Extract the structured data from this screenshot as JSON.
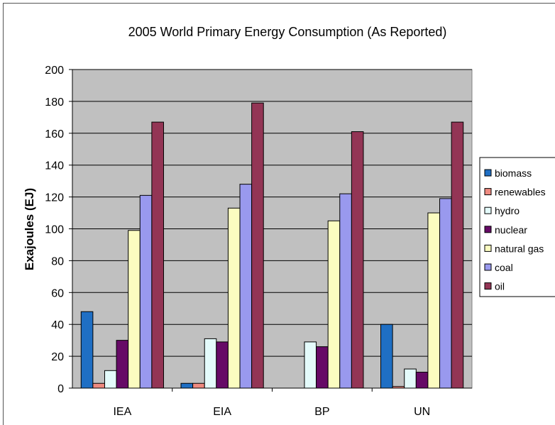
{
  "chart_data": {
    "type": "bar",
    "title": "2005 World Primary Energy Consumption (As Reported)",
    "xlabel": "",
    "ylabel": "Exajoules (EJ)",
    "categories": [
      "IEA",
      "EIA",
      "BP",
      "UN"
    ],
    "ylim": [
      0,
      200
    ],
    "yticks": [
      0,
      20,
      40,
      60,
      80,
      100,
      120,
      140,
      160,
      180,
      200
    ],
    "grid": true,
    "legend_position": "right",
    "series": [
      {
        "name": "biomass",
        "color": "#1f6fc4",
        "values": [
          48,
          3,
          0,
          40
        ]
      },
      {
        "name": "renewables",
        "color": "#ee8a80",
        "values": [
          3,
          3,
          0,
          1
        ]
      },
      {
        "name": "hydro",
        "color": "#e4fbfb",
        "values": [
          11,
          31,
          29,
          12
        ]
      },
      {
        "name": "nuclear",
        "color": "#660a66",
        "values": [
          30,
          29,
          26,
          10
        ]
      },
      {
        "name": "natural gas",
        "color": "#fbfcc0",
        "values": [
          99,
          113,
          105,
          110
        ]
      },
      {
        "name": "coal",
        "color": "#9999ee",
        "values": [
          121,
          128,
          122,
          119
        ]
      },
      {
        "name": "oil",
        "color": "#933555",
        "values": [
          167,
          179,
          161,
          167
        ]
      }
    ]
  }
}
